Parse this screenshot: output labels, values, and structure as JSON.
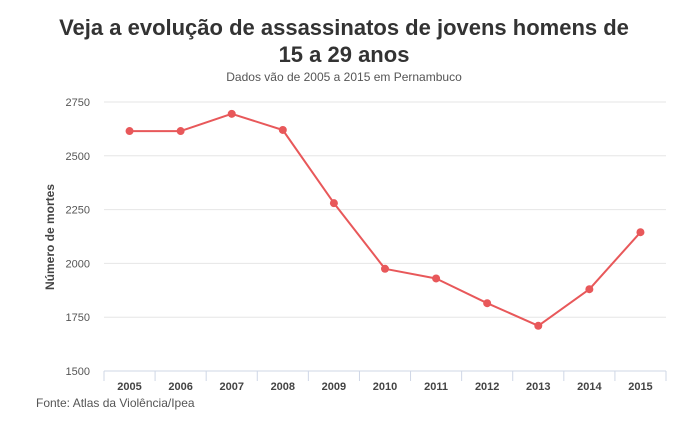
{
  "header": {
    "title": "Veja a evolução de assassinatos de jovens homens de 15 a 29 anos",
    "subtitle": "Dados vão de 2005 a 2015 em Pernambuco"
  },
  "footer": {
    "source": "Fonte: Atlas da Violência/Ipea"
  },
  "colors": {
    "line": "#e8585a",
    "grid": "#e6e6e6",
    "axis": "#cfd7e6",
    "tick_text": "#555555"
  },
  "chart_data": {
    "type": "line",
    "title": "Veja a evolução de assassinatos de jovens homens de 15 a 29 anos",
    "subtitle": "Dados vão de 2005 a 2015 em Pernambuco",
    "xlabel": "",
    "ylabel": "Número de mortes",
    "categories": [
      "2005",
      "2006",
      "2007",
      "2008",
      "2009",
      "2010",
      "2011",
      "2012",
      "2013",
      "2014",
      "2015"
    ],
    "series": [
      {
        "values": [
          2615,
          2615,
          2695,
          2620,
          2280,
          1975,
          1930,
          1815,
          1710,
          1880,
          2145
        ]
      }
    ],
    "ylim": [
      1500,
      2750
    ],
    "yticks": [
      1500,
      1750,
      2000,
      2250,
      2500,
      2750
    ],
    "grid": true,
    "legend": "none"
  }
}
